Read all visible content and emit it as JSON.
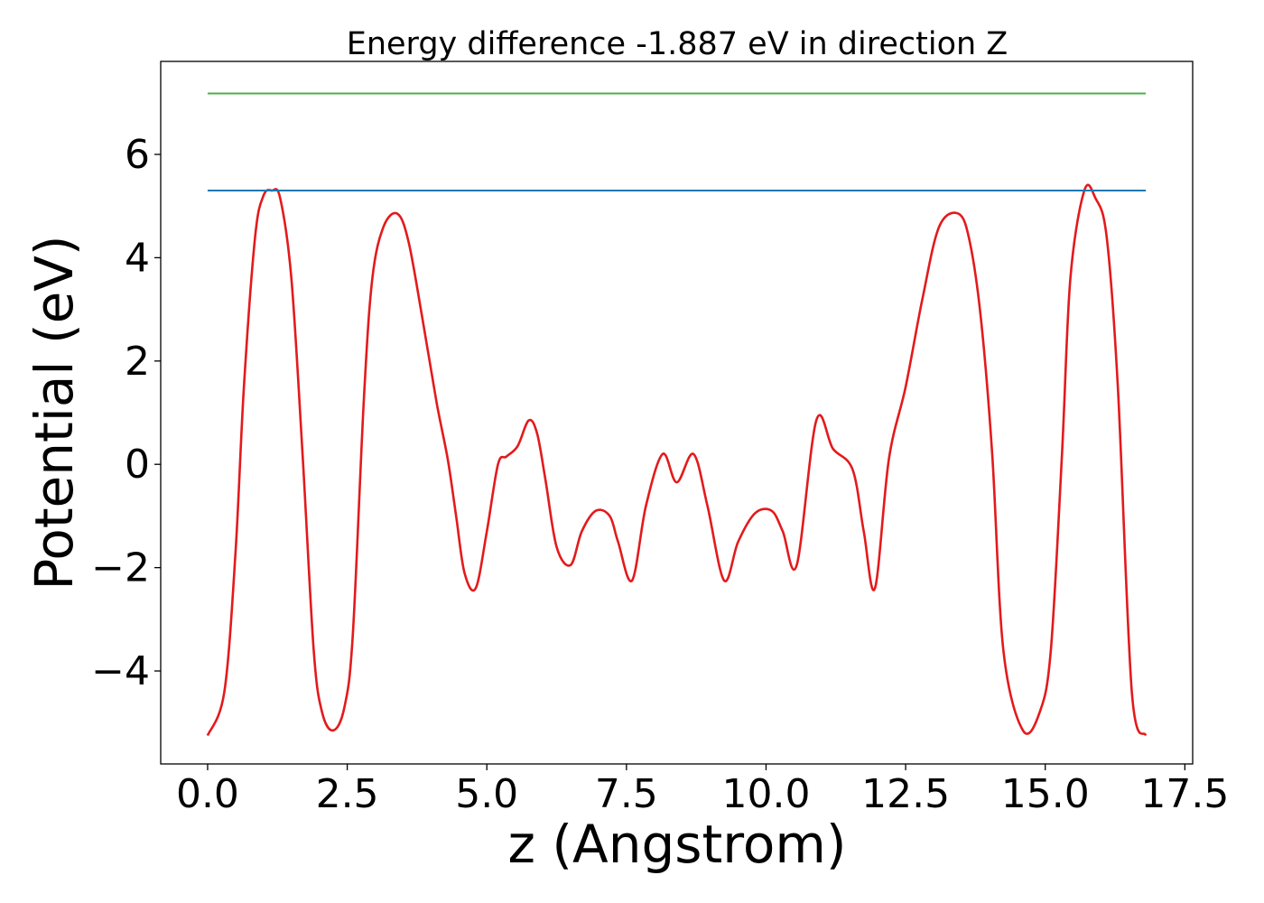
{
  "chart_data": {
    "type": "line",
    "title": "Energy difference -1.887 eV in direction Z",
    "xlabel": "z (Angstrom)",
    "ylabel": "Potential (eV)",
    "xlim": [
      -0.84,
      17.64
    ],
    "ylim": [
      -5.8,
      7.8
    ],
    "xticks": [
      0.0,
      2.5,
      5.0,
      7.5,
      10.0,
      12.5,
      15.0,
      17.5
    ],
    "xtick_labels": [
      "0.0",
      "2.5",
      "5.0",
      "7.5",
      "10.0",
      "12.5",
      "15.0",
      "17.5"
    ],
    "yticks": [
      -4,
      -2,
      0,
      2,
      4,
      6
    ],
    "ytick_labels": [
      "−4",
      "−2",
      "0",
      "2",
      "4",
      "6"
    ],
    "grid": false,
    "series": [
      {
        "color": "#e31a1c",
        "x": [
          0.0,
          0.3,
          0.5,
          0.65,
          0.85,
          1.0,
          1.15,
          1.3,
          1.5,
          1.7,
          1.9,
          2.05,
          2.25,
          2.45,
          2.6,
          2.8,
          2.95,
          3.15,
          3.4,
          3.6,
          3.85,
          4.1,
          4.3,
          4.45,
          4.6,
          4.8,
          5.0,
          5.2,
          5.35,
          5.55,
          5.75,
          5.9,
          6.05,
          6.25,
          6.5,
          6.7,
          6.95,
          7.2,
          7.35,
          7.6,
          7.85,
          8.15,
          8.4,
          8.7,
          8.95,
          9.25,
          9.5,
          9.8,
          10.1,
          10.3,
          10.55,
          10.9,
          11.2,
          11.55,
          11.75,
          11.95,
          12.2,
          12.5,
          12.8,
          13.1,
          13.45,
          13.65,
          13.85,
          14.05,
          14.25,
          14.6,
          14.9,
          15.1,
          15.3,
          15.45,
          15.7,
          15.9,
          16.1,
          16.3,
          16.55,
          16.8
        ],
        "y": [
          -5.25,
          -4.4,
          -1.7,
          1.5,
          4.4,
          5.2,
          5.3,
          5.15,
          3.6,
          0.2,
          -3.6,
          -4.8,
          -5.15,
          -4.7,
          -3.3,
          1.3,
          3.6,
          4.6,
          4.85,
          4.3,
          2.8,
          1.2,
          0.1,
          -1.0,
          -2.1,
          -2.4,
          -1.3,
          0.0,
          0.15,
          0.35,
          0.85,
          0.6,
          -0.3,
          -1.6,
          -1.95,
          -1.3,
          -0.9,
          -1.0,
          -1.5,
          -2.25,
          -0.8,
          0.2,
          -0.35,
          0.2,
          -0.8,
          -2.25,
          -1.5,
          -0.95,
          -0.9,
          -1.3,
          -1.95,
          0.85,
          0.3,
          -0.1,
          -1.3,
          -2.4,
          0.1,
          1.5,
          3.2,
          4.6,
          4.85,
          4.3,
          2.8,
          0.2,
          -3.6,
          -5.15,
          -4.8,
          -3.6,
          0.2,
          3.6,
          5.3,
          5.15,
          4.4,
          1.5,
          -4.4,
          -5.25
        ]
      },
      {
        "color": "#1f77b4",
        "x": [
          0.0,
          16.8
        ],
        "y": [
          5.3,
          5.3
        ]
      },
      {
        "color": "#4daf4a",
        "x": [
          0.0,
          16.8
        ],
        "y": [
          7.18,
          7.18
        ]
      }
    ]
  }
}
